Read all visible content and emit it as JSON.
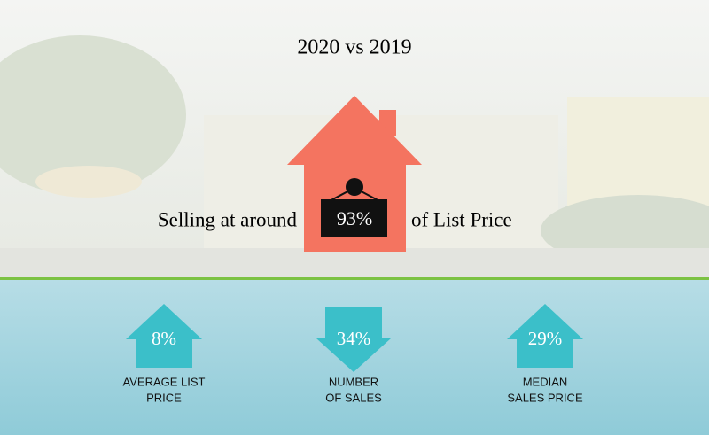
{
  "header": {
    "title": "2020 vs 2019"
  },
  "headline": {
    "prefix": "Selling at around",
    "value": "93%",
    "suffix": "of List Price"
  },
  "stats": [
    {
      "value": "8%",
      "direction": "up",
      "label_lines": [
        "AVERAGE LIST",
        "PRICE"
      ]
    },
    {
      "value": "34%",
      "direction": "down",
      "label_lines": [
        "NUMBER",
        "OF SALES"
      ]
    },
    {
      "value": "29%",
      "direction": "up",
      "label_lines": [
        "MEDIAN",
        "SALES PRICE"
      ]
    }
  ]
}
